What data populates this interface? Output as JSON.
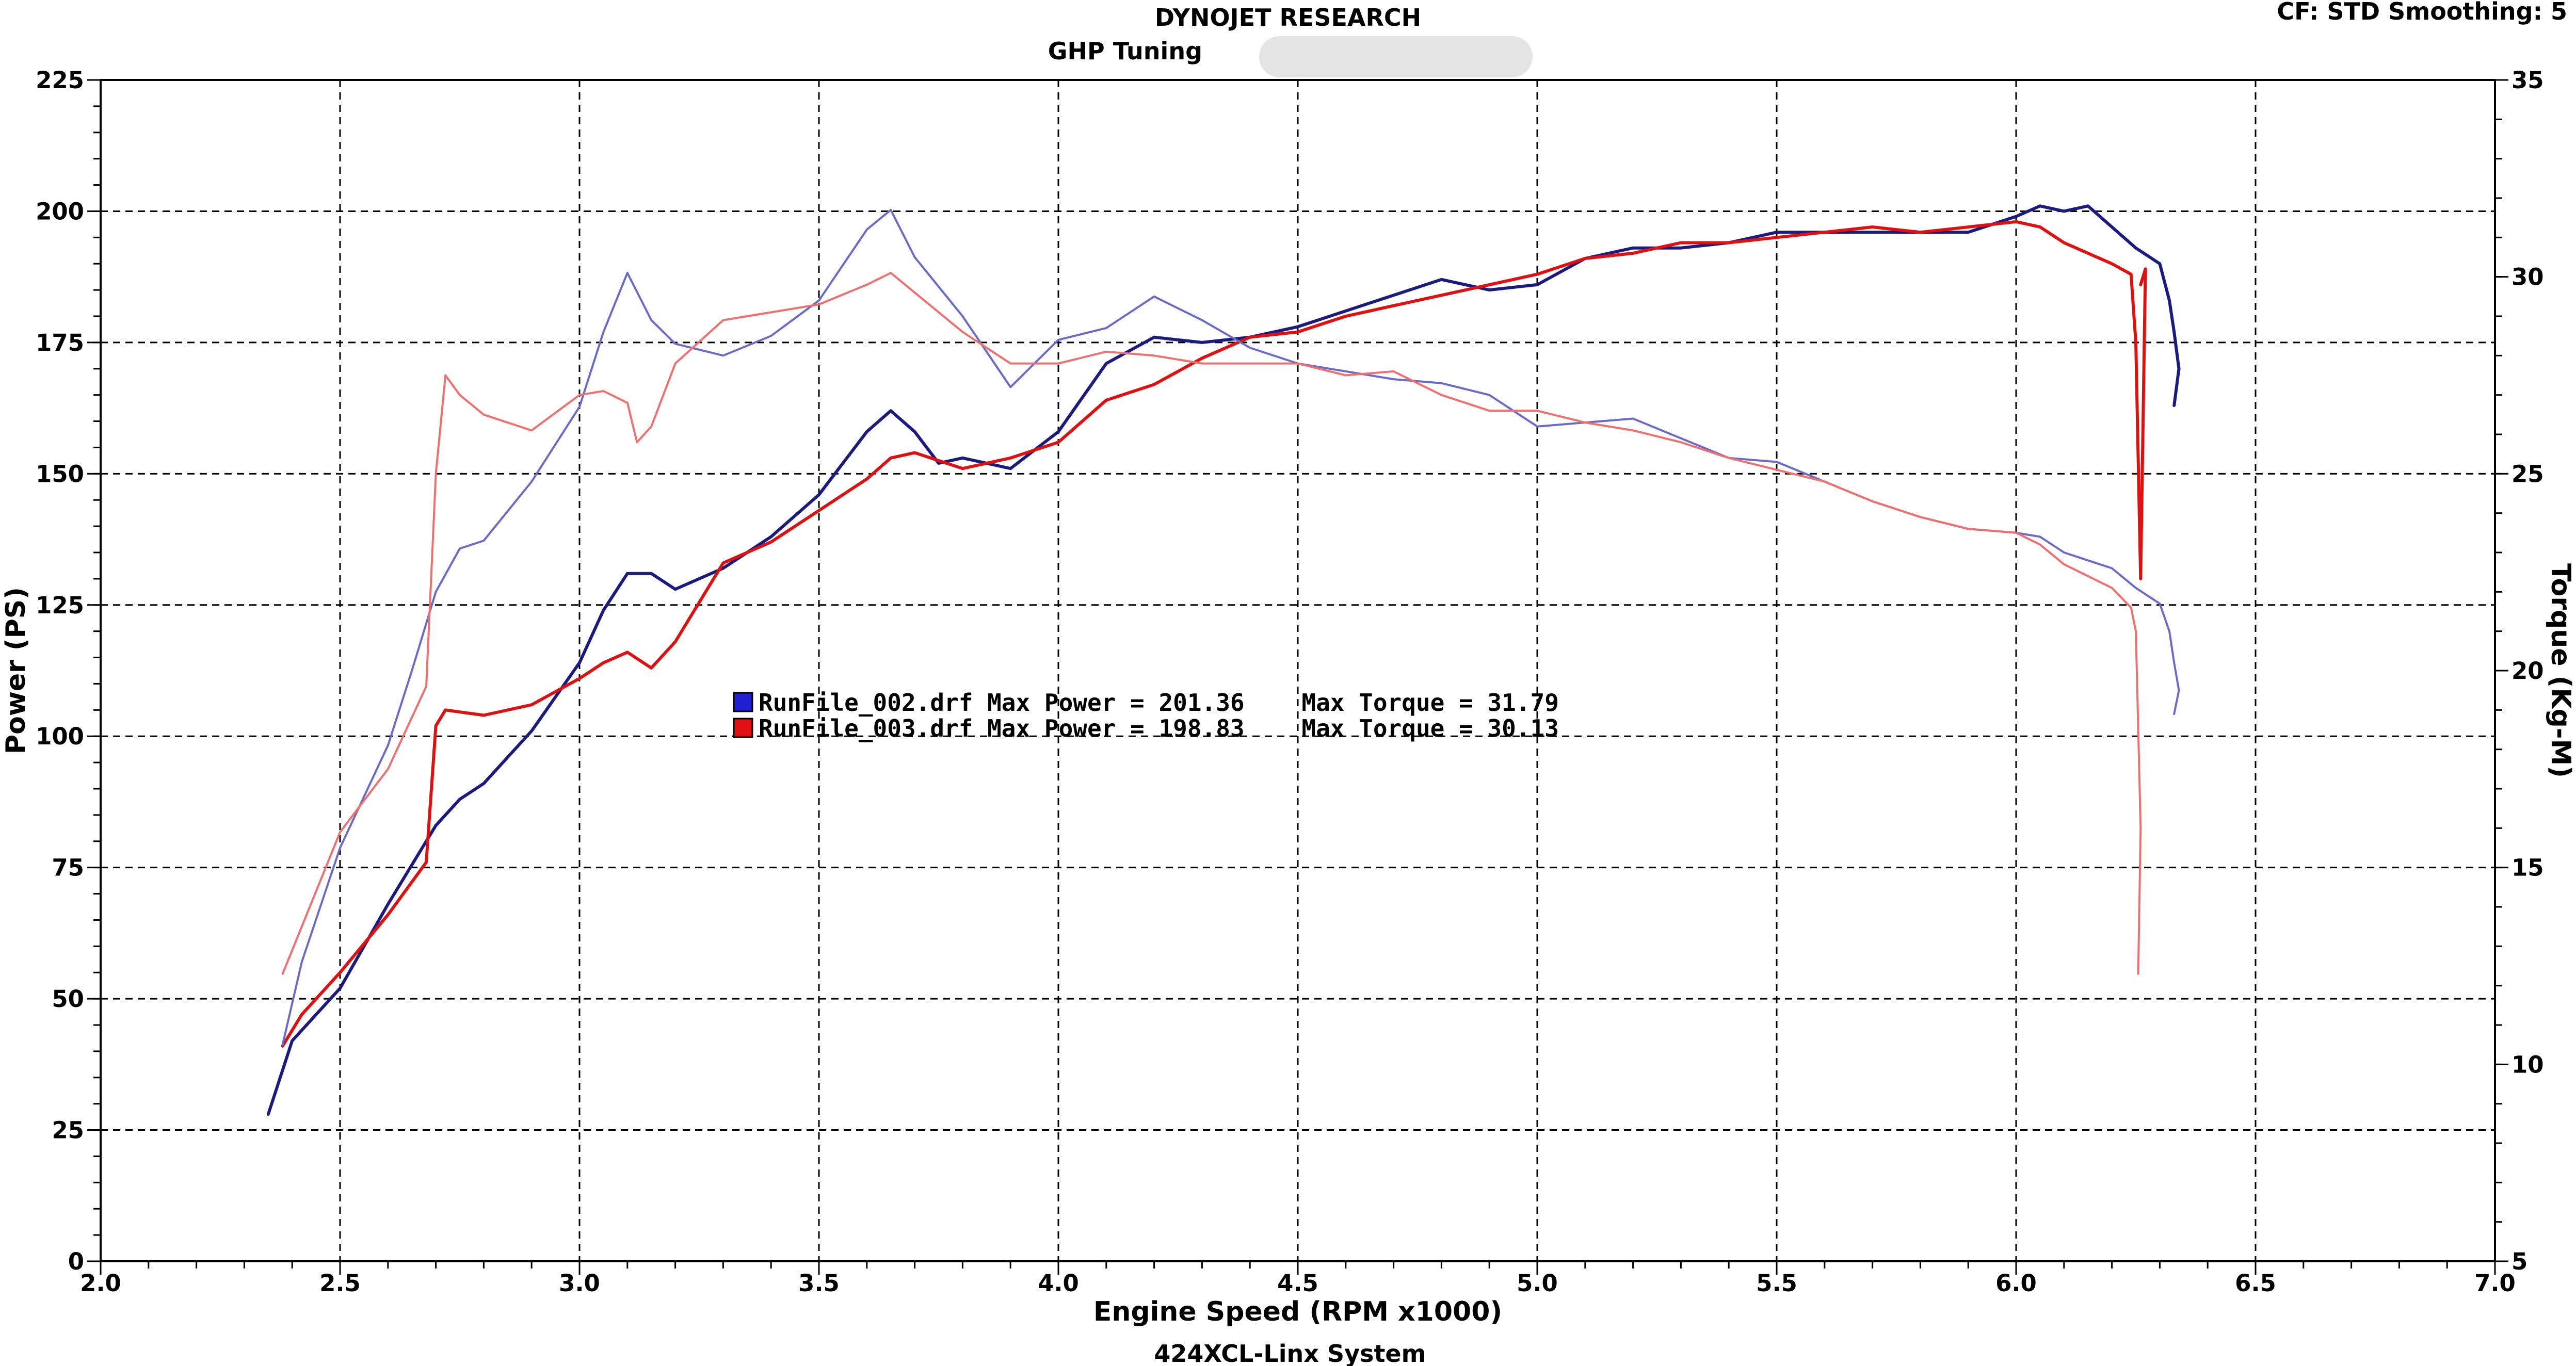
{
  "header": {
    "company": "DYNOJET RESEARCH",
    "subtitle": "GHP Tuning",
    "info": "CF: STD  Smoothing: 5",
    "footer": "424XCL-Linx System"
  },
  "chart_data": {
    "type": "line",
    "xlabel": "Engine Speed (RPM x1000)",
    "ylabel": "Power (PS)",
    "y2label": "Torque (Kg-M)",
    "xlim": [
      2.0,
      7.0
    ],
    "ylim": [
      0,
      225
    ],
    "y2lim": [
      5,
      35
    ],
    "x_ticks": [
      "2.0",
      "2.5",
      "3.0",
      "3.5",
      "4.0",
      "4.5",
      "5.0",
      "5.5",
      "6.0",
      "6.5",
      "7.0"
    ],
    "y_ticks": [
      "0",
      "25",
      "50",
      "75",
      "100",
      "125",
      "150",
      "175",
      "200",
      "225"
    ],
    "y2_ticks": [
      "5",
      "10",
      "15",
      "20",
      "25",
      "30",
      "35"
    ],
    "grid": true,
    "legend": [
      {
        "name": "RunFile_002.drf",
        "text": "RunFile_002.drf Max Power = 201.36    Max Torque = 31.79",
        "color": "#1a1aa0"
      },
      {
        "name": "RunFile_003.drf",
        "text": "RunFile_003.drf Max Power = 198.83    Max Torque = 30.13",
        "color": "#e01010"
      }
    ],
    "series": [
      {
        "name": "RunFile_002.drf",
        "measure": "Power",
        "axis": "left",
        "color": "#1a1a80",
        "x": [
          2.35,
          2.4,
          2.5,
          2.6,
          2.7,
          2.75,
          2.8,
          2.9,
          3.0,
          3.05,
          3.1,
          3.15,
          3.2,
          3.3,
          3.4,
          3.5,
          3.6,
          3.65,
          3.7,
          3.75,
          3.8,
          3.9,
          4.0,
          4.1,
          4.2,
          4.3,
          4.4,
          4.5,
          4.6,
          4.7,
          4.8,
          4.9,
          5.0,
          5.1,
          5.2,
          5.3,
          5.4,
          5.5,
          5.6,
          5.7,
          5.8,
          5.9,
          6.0,
          6.05,
          6.1,
          6.15,
          6.2,
          6.25,
          6.3,
          6.32,
          6.33,
          6.34,
          6.33
        ],
        "y": [
          28,
          42,
          52,
          68,
          83,
          88,
          91,
          101,
          114,
          124,
          131,
          131,
          128,
          132,
          138,
          146,
          158,
          162,
          158,
          152,
          153,
          151,
          158,
          171,
          176,
          175,
          176,
          178,
          181,
          184,
          187,
          185,
          186,
          191,
          193,
          193,
          194,
          196,
          196,
          196,
          196,
          196,
          199,
          201,
          200,
          201,
          197,
          193,
          190,
          183,
          177,
          170,
          163
        ]
      },
      {
        "name": "RunFile_003.drf",
        "measure": "Power",
        "axis": "left",
        "color": "#e01010",
        "x": [
          2.38,
          2.42,
          2.5,
          2.6,
          2.68,
          2.7,
          2.72,
          2.8,
          2.9,
          3.0,
          3.05,
          3.1,
          3.15,
          3.2,
          3.3,
          3.4,
          3.5,
          3.6,
          3.65,
          3.7,
          3.8,
          3.9,
          4.0,
          4.1,
          4.2,
          4.3,
          4.4,
          4.5,
          4.6,
          4.7,
          4.8,
          4.9,
          5.0,
          5.1,
          5.2,
          5.3,
          5.4,
          5.5,
          5.6,
          5.7,
          5.8,
          5.9,
          6.0,
          6.05,
          6.1,
          6.15,
          6.2,
          6.24,
          6.25,
          6.26,
          6.27,
          6.26
        ],
        "y": [
          41,
          47,
          55,
          66,
          76,
          102,
          105,
          104,
          106,
          111,
          114,
          116,
          113,
          118,
          133,
          137,
          143,
          149,
          153,
          154,
          151,
          153,
          156,
          164,
          167,
          172,
          176,
          177,
          180,
          182,
          184,
          186,
          188,
          191,
          192,
          194,
          194,
          195,
          196,
          197,
          196,
          197,
          198,
          197,
          194,
          192,
          190,
          188,
          175,
          130,
          189,
          186
        ]
      },
      {
        "name": "RunFile_002.drf",
        "measure": "Torque",
        "axis": "right",
        "color": "#6a6ac8",
        "x": [
          2.38,
          2.42,
          2.5,
          2.6,
          2.65,
          2.7,
          2.75,
          2.8,
          2.9,
          3.0,
          3.05,
          3.1,
          3.15,
          3.2,
          3.3,
          3.4,
          3.5,
          3.6,
          3.65,
          3.7,
          3.8,
          3.9,
          4.0,
          4.1,
          4.2,
          4.3,
          4.4,
          4.5,
          4.6,
          4.7,
          4.8,
          4.9,
          5.0,
          5.1,
          5.2,
          5.3,
          5.4,
          5.5,
          5.6,
          5.7,
          5.8,
          5.9,
          6.0,
          6.05,
          6.1,
          6.15,
          6.2,
          6.25,
          6.3,
          6.32,
          6.33,
          6.34,
          6.33
        ],
        "y": [
          10.5,
          12.6,
          15.5,
          18.1,
          20.0,
          22.0,
          23.1,
          23.3,
          24.8,
          26.7,
          28.6,
          30.1,
          28.9,
          28.3,
          28.0,
          28.5,
          29.4,
          31.2,
          31.7,
          30.5,
          29.0,
          27.2,
          28.4,
          28.7,
          29.5,
          28.9,
          28.2,
          27.8,
          27.6,
          27.4,
          27.3,
          27.0,
          26.2,
          26.3,
          26.4,
          25.9,
          25.4,
          25.3,
          24.8,
          24.3,
          23.9,
          23.6,
          23.5,
          23.4,
          23.0,
          22.8,
          22.6,
          22.1,
          21.7,
          21.0,
          20.2,
          19.5,
          18.9
        ]
      },
      {
        "name": "RunFile_003.drf",
        "measure": "Torque",
        "axis": "right",
        "color": "#f07070",
        "x": [
          2.38,
          2.42,
          2.5,
          2.6,
          2.68,
          2.7,
          2.72,
          2.75,
          2.8,
          2.9,
          3.0,
          3.05,
          3.1,
          3.12,
          3.15,
          3.2,
          3.3,
          3.4,
          3.5,
          3.6,
          3.65,
          3.7,
          3.8,
          3.9,
          4.0,
          4.1,
          4.2,
          4.3,
          4.4,
          4.5,
          4.6,
          4.7,
          4.8,
          4.9,
          5.0,
          5.1,
          5.2,
          5.3,
          5.4,
          5.5,
          5.6,
          5.7,
          5.8,
          5.9,
          6.0,
          6.05,
          6.1,
          6.15,
          6.2,
          6.24,
          6.25,
          6.26,
          6.255
        ],
        "y": [
          12.3,
          13.5,
          15.9,
          17.5,
          19.6,
          25.0,
          27.5,
          27.0,
          26.5,
          26.1,
          27.0,
          27.1,
          26.8,
          25.8,
          26.2,
          27.8,
          28.9,
          29.1,
          29.3,
          29.8,
          30.1,
          29.6,
          28.6,
          27.8,
          27.8,
          28.1,
          28.0,
          27.8,
          27.8,
          27.8,
          27.5,
          27.6,
          27.0,
          26.6,
          26.6,
          26.3,
          26.1,
          25.8,
          25.4,
          25.1,
          24.8,
          24.3,
          23.9,
          23.6,
          23.5,
          23.2,
          22.7,
          22.4,
          22.1,
          21.6,
          21.0,
          16.0,
          12.3
        ]
      }
    ]
  }
}
